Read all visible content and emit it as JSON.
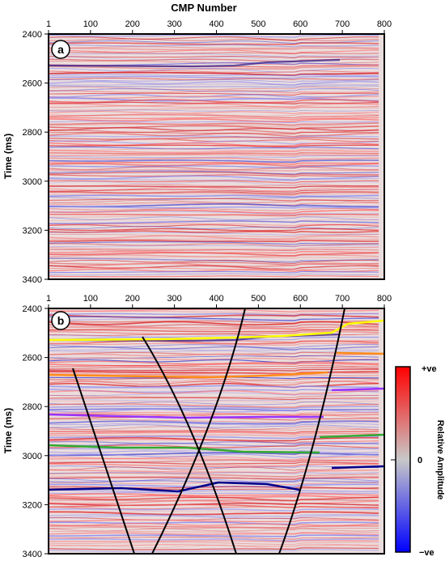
{
  "figure": {
    "top_axis_title": "CMP Number",
    "cmp_ticks": [
      "1",
      "100",
      "200",
      "300",
      "400",
      "500",
      "600",
      "700",
      "800"
    ],
    "time_ticks": [
      "2400",
      "2600",
      "2800",
      "3000",
      "3200",
      "3400"
    ],
    "y_label": "Time (ms)"
  },
  "panels": [
    {
      "label": "a"
    },
    {
      "label": "b"
    }
  ],
  "colorbar": {
    "title": "Relative Amplitude",
    "top_label": "+ve",
    "mid_label": "0",
    "bottom_label": "−ve",
    "colors": {
      "positive": "#ff0000",
      "zero": "#c8c8c8",
      "negative": "#0000ff"
    }
  },
  "interpreted_horizon_colors": [
    "#ffff00",
    "#ff8c1a",
    "#9933ff",
    "#33aa33",
    "#00008b"
  ],
  "fault_color": "#000000"
}
